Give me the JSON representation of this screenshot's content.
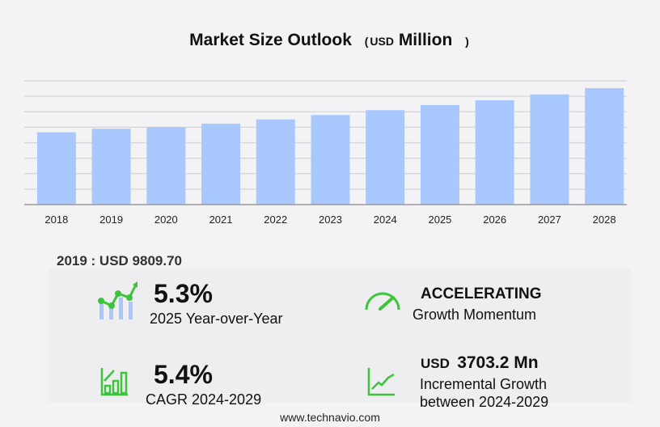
{
  "title": {
    "main": "Market Size Outlook",
    "open": "(",
    "unit": "USD",
    "unit_word": "Million",
    "close": ")"
  },
  "chart_data": {
    "type": "bar",
    "categories": [
      "2018",
      "2019",
      "2020",
      "2021",
      "2022",
      "2023",
      "2024",
      "2025",
      "2026",
      "2027",
      "2028"
    ],
    "values": [
      9351,
      9810,
      10018,
      10467,
      11020,
      11584,
      12210,
      12868,
      13494,
      14256,
      15059
    ],
    "ylim": [
      0,
      16000
    ],
    "grid": true,
    "bar_color": "#a8c8fd"
  },
  "reference": {
    "text": "2019 : USD  9809.70"
  },
  "stats": {
    "yoy": {
      "value": "5.3%",
      "label": "2025 Year-over-Year"
    },
    "momentum": {
      "value": "ACCELERATING",
      "label": "Growth Momentum"
    },
    "cagr": {
      "value": "5.4%",
      "label": "CAGR 2024-2029"
    },
    "incremental": {
      "currency": "USD",
      "value": "3703.2 Mn",
      "label1": "Incremental Growth",
      "label2": "between 2024-2029"
    }
  },
  "accent_color": "#3cc43c",
  "footer": "www.technavio.com"
}
